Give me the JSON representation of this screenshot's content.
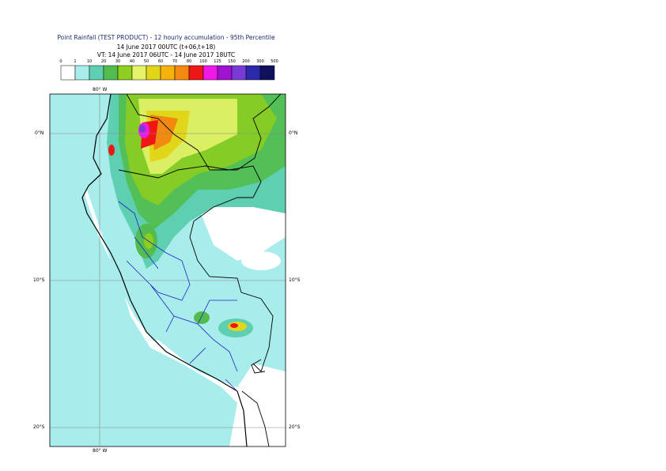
{
  "header": {
    "title": "Point Rainfall (TEST PRODUCT) - 12 hourly accumulation - 95th Percentile",
    "base_time": "14 June 2017 00UTC (t+06,t+18)",
    "valid_time": "VT: 14 June 2017 06UTC - 14 June 2017 18UTC"
  },
  "legend": {
    "thresholds": [
      "0",
      "1",
      "10",
      "20",
      "30",
      "40",
      "50",
      "60",
      "70",
      "80",
      "100",
      "125",
      "150",
      "200",
      "300",
      "500"
    ],
    "colors": [
      "#ffffff",
      "#a8ecec",
      "#5ecfb0",
      "#52bd4e",
      "#8ece1e",
      "#e6f26a",
      "#e2d61a",
      "#f7b20c",
      "#f28a10",
      "#ee1616",
      "#f018e6",
      "#a012d2",
      "#7a3ad8",
      "#2a2aaa",
      "#10105e"
    ]
  },
  "map": {
    "lon_label_top": "80° W",
    "lon_label_bottom": "80° W",
    "lat_labels": [
      "0°N",
      "10°S",
      "20°S"
    ],
    "sea_color": "#a8ecec",
    "land_color": "#ffffff"
  }
}
